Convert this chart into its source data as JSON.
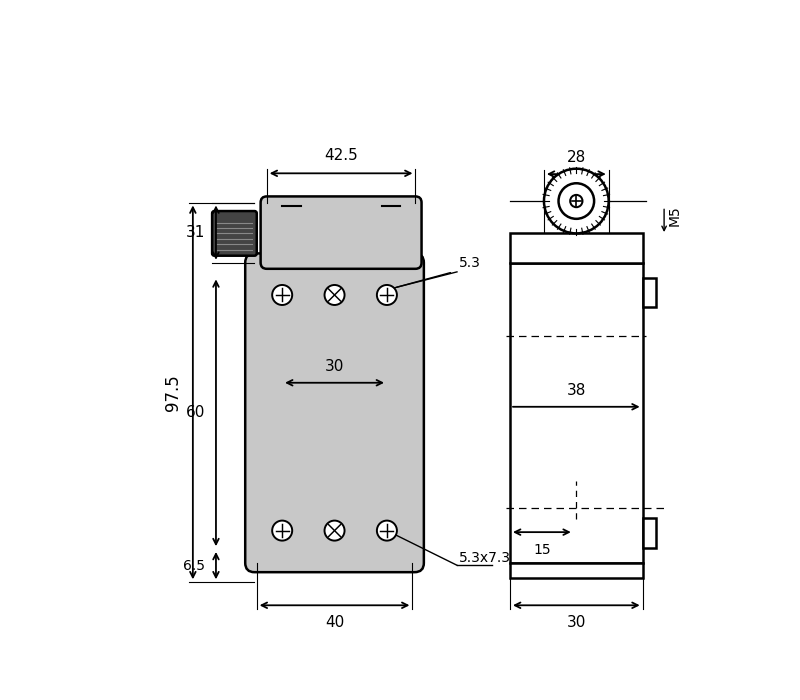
{
  "bg_color": "#ffffff",
  "line_color": "#000000",
  "fill_color": "#c8c8c8",
  "fig_width": 8.0,
  "fig_height": 7.0,
  "dpi": 100,
  "dims": {
    "42p5": "42.5",
    "31": "31",
    "97p5": "97.5",
    "60": "60",
    "6p5": "6.5",
    "30_horiz": "30",
    "40": "40",
    "5p3": "5.3",
    "5p3x7p3": "5.3x7.3",
    "28": "28",
    "M5": "M5",
    "38": "38",
    "15": "15",
    "30_bot": "30"
  }
}
